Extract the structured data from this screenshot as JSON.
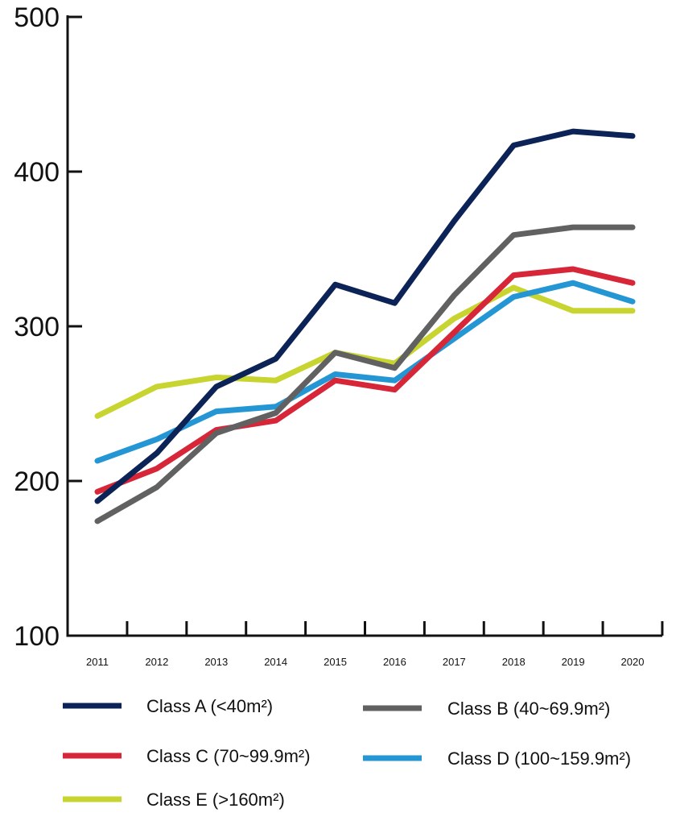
{
  "chart_data": {
    "type": "line",
    "title": "",
    "xlabel": "",
    "ylabel": "",
    "x": [
      "2011",
      "2012",
      "2013",
      "2014",
      "2015",
      "2016",
      "2017",
      "2018",
      "2019",
      "2020"
    ],
    "ylim": [
      100,
      500
    ],
    "yticks": [
      "100",
      "200",
      "300",
      "400",
      "500"
    ],
    "grid": false,
    "legend_position": "bottom",
    "series": [
      {
        "name": "Class A (<40m²)",
        "color": "#0c2357",
        "values": [
          187,
          218,
          261,
          279,
          327,
          315,
          368,
          417,
          426,
          423
        ]
      },
      {
        "name": "Class B  (40~69.9m²)",
        "color": "#616161",
        "values": [
          174,
          196,
          231,
          244,
          283,
          273,
          320,
          359,
          364,
          364
        ]
      },
      {
        "name": "Class C (70~99.9m²)",
        "color": "#d62638",
        "values": [
          193,
          208,
          233,
          239,
          265,
          259,
          296,
          333,
          337,
          328
        ]
      },
      {
        "name": "Class D (100~159.9m²)",
        "color": "#2496d4",
        "values": [
          213,
          227,
          245,
          248,
          269,
          265,
          292,
          319,
          328,
          316
        ]
      },
      {
        "name": "Class E (>160m²)",
        "color": "#c8d42f",
        "values": [
          242,
          261,
          267,
          265,
          283,
          276,
          305,
          325,
          310,
          310
        ]
      }
    ]
  }
}
